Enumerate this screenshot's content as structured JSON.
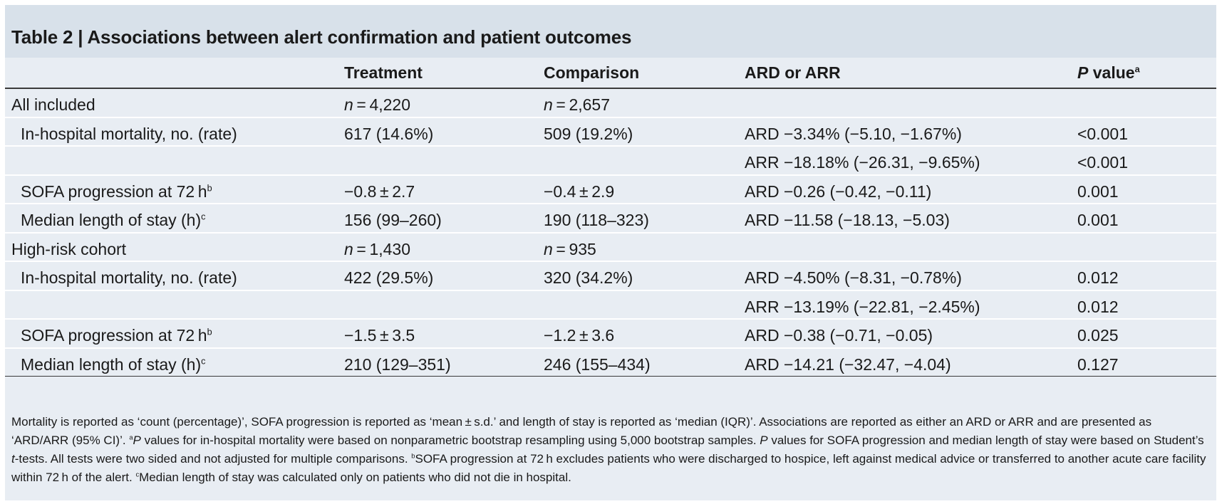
{
  "title": "Table 2 | Associations between alert confirmation and patient outcomes",
  "columns": {
    "label": "",
    "treatment": "Treatment",
    "comparison": "Comparison",
    "ard_arr": "ARD or ARR",
    "p_value": "P",
    "p_value_rest": " value",
    "p_value_sup": "a"
  },
  "rows": [
    {
      "label": "All included",
      "label_sup": "",
      "indent": false,
      "treatment_prefix": "n",
      "treatment": " = 4,220",
      "comparison_prefix": "n",
      "comparison": " = 2,657",
      "ard_arr": "",
      "p_value": ""
    },
    {
      "label": "In-hospital mortality, no. (rate)",
      "label_sup": "",
      "indent": true,
      "treatment_prefix": "",
      "treatment": "617 (14.6%)",
      "comparison_prefix": "",
      "comparison": "509 (19.2%)",
      "ard_arr": "ARD −3.34% (−5.10, −1.67%)",
      "p_value": "<0.001"
    },
    {
      "label": "",
      "label_sup": "",
      "indent": true,
      "treatment_prefix": "",
      "treatment": "",
      "comparison_prefix": "",
      "comparison": "",
      "ard_arr": "ARR −18.18% (−26.31, −9.65%)",
      "p_value": "<0.001"
    },
    {
      "label": "SOFA progression at 72 h",
      "label_sup": "b",
      "indent": true,
      "treatment_prefix": "",
      "treatment": "−0.8 ± 2.7",
      "comparison_prefix": "",
      "comparison": "−0.4 ± 2.9",
      "ard_arr": "ARD −0.26 (−0.42, −0.11)",
      "p_value": "0.001"
    },
    {
      "label": "Median length of stay (h)",
      "label_sup": "c",
      "indent": true,
      "treatment_prefix": "",
      "treatment": "156 (99–260)",
      "comparison_prefix": "",
      "comparison": "190 (118–323)",
      "ard_arr": "ARD −11.58 (−18.13, −5.03)",
      "p_value": "0.001"
    },
    {
      "label": "High-risk cohort",
      "label_sup": "",
      "indent": false,
      "treatment_prefix": "n",
      "treatment": " = 1,430",
      "comparison_prefix": "n",
      "comparison": " = 935",
      "ard_arr": "",
      "p_value": ""
    },
    {
      "label": "In-hospital mortality, no. (rate)",
      "label_sup": "",
      "indent": true,
      "treatment_prefix": "",
      "treatment": "422 (29.5%)",
      "comparison_prefix": "",
      "comparison": "320 (34.2%)",
      "ard_arr": "ARD −4.50% (−8.31, −0.78%)",
      "p_value": "0.012"
    },
    {
      "label": "",
      "label_sup": "",
      "indent": true,
      "treatment_prefix": "",
      "treatment": "",
      "comparison_prefix": "",
      "comparison": "",
      "ard_arr": "ARR −13.19% (−22.81, −2.45%)",
      "p_value": "0.012"
    },
    {
      "label": "SOFA progression at 72 h",
      "label_sup": "b",
      "indent": true,
      "treatment_prefix": "",
      "treatment": "−1.5 ± 3.5",
      "comparison_prefix": "",
      "comparison": "−1.2 ± 3.6",
      "ard_arr": "ARD −0.38 (−0.71, −0.05)",
      "p_value": "0.025"
    },
    {
      "label": "Median length of stay (h)",
      "label_sup": "c",
      "indent": true,
      "treatment_prefix": "",
      "treatment": "210 (129–351)",
      "comparison_prefix": "",
      "comparison": "246 (155–434)",
      "ard_arr": "ARD −14.21 (−32.47, −4.04)",
      "p_value": "0.127"
    }
  ],
  "footnote": {
    "part1": "Mortality is reported as ‘count (percentage)’, SOFA progression is reported as ‘mean ± s.d.’ and length of stay is reported as ‘median (IQR)’. Associations are reported as either an ARD or ARR and are presented as ‘ARD/ARR (95% CI)’. ",
    "sup_a": "a",
    "p1": "P",
    "part2": " values for in-hospital mortality were based on nonparametric bootstrap resampling using 5,000 bootstrap samples. ",
    "p2": "P",
    "part3": " values for SOFA progression and median length of stay were based on Student’s ",
    "t": "t",
    "part4": "-tests. All tests were two sided and not adjusted for multiple comparisons. ",
    "sup_b": "b",
    "part5": "SOFA progression at 72 h excludes patients who were discharged to hospice, left against medical advice or transferred to another acute care facility within 72 h of the alert. ",
    "sup_c": "c",
    "part6": "Median length of stay was calculated only on patients who did not die in hospital."
  }
}
